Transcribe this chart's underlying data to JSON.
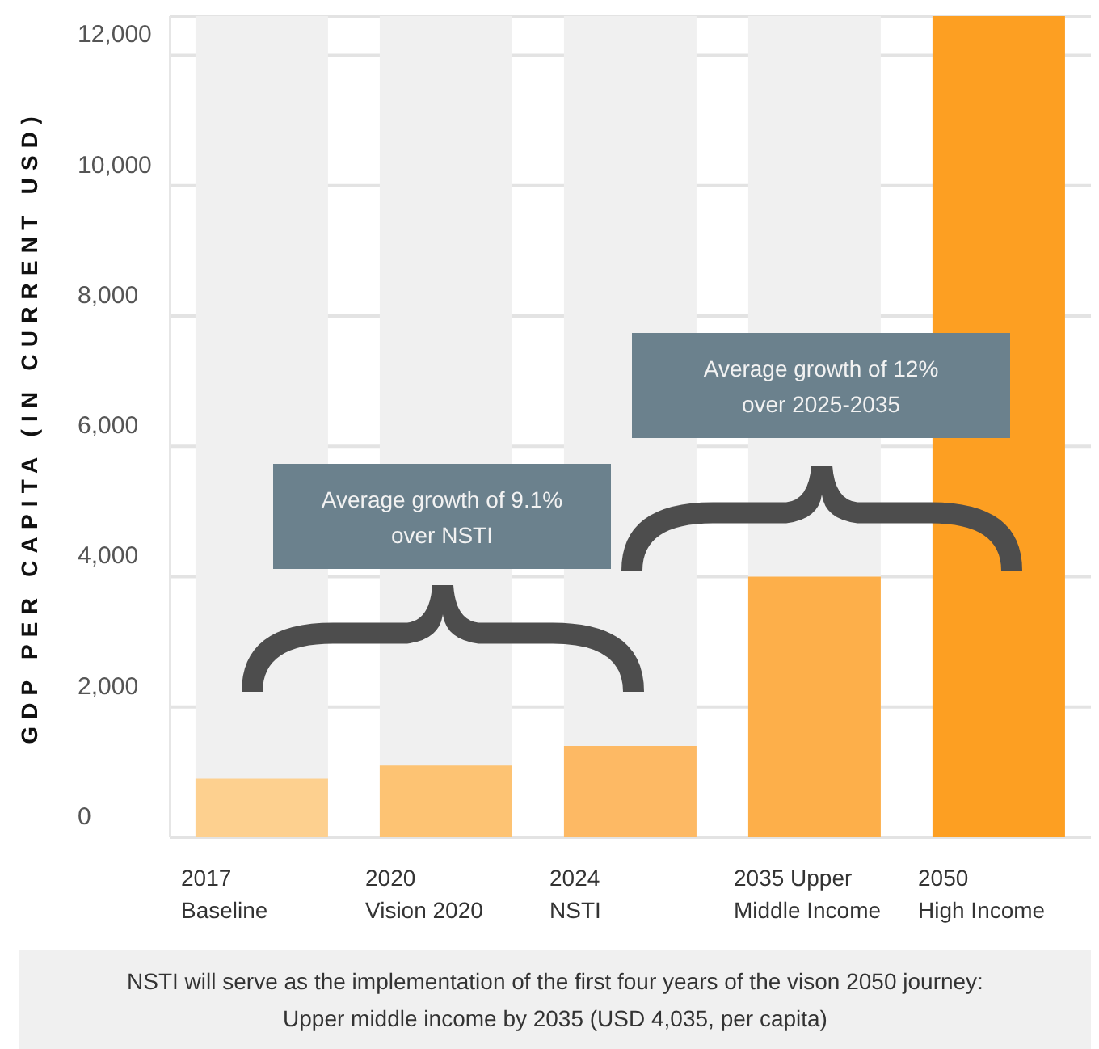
{
  "chart_data": {
    "type": "bar",
    "ylabel": "GDP PER CAPITA (IN CURRENT USD)",
    "categories": [
      "2017\nBaseline",
      "2020\nVision 2020",
      "2024\nNSTI",
      "2035 Upper\nMiddle Income",
      "2050\nHigh Income"
    ],
    "values": [
      900,
      1100,
      1400,
      4000,
      12600
    ],
    "colors": [
      "#fdd08f",
      "#fdc373",
      "#fdb964",
      "#fdaf4a",
      "#fd9f22"
    ],
    "ylim": [
      0,
      12600
    ],
    "yticks": [
      0,
      {
        "value": 2000,
        "label": "2,000"
      },
      {
        "value": 4000,
        "label": "4,000"
      },
      {
        "value": 6000,
        "label": "6,000"
      },
      {
        "value": 8000,
        "label": "8,000"
      },
      {
        "value": 10000,
        "label": "10,000"
      },
      {
        "value": 12000,
        "label": "12,000"
      }
    ],
    "grid": "y",
    "annotations": [
      "Average growth of 9.1%\nover NSTI",
      "Average growth of 12%\nover 2025-2035",
      "NSTI will serve as the implementation of the first four years of the vison 2050 journey:\nUpper middle income by 2035 (USD 4,035, per capita)"
    ]
  }
}
